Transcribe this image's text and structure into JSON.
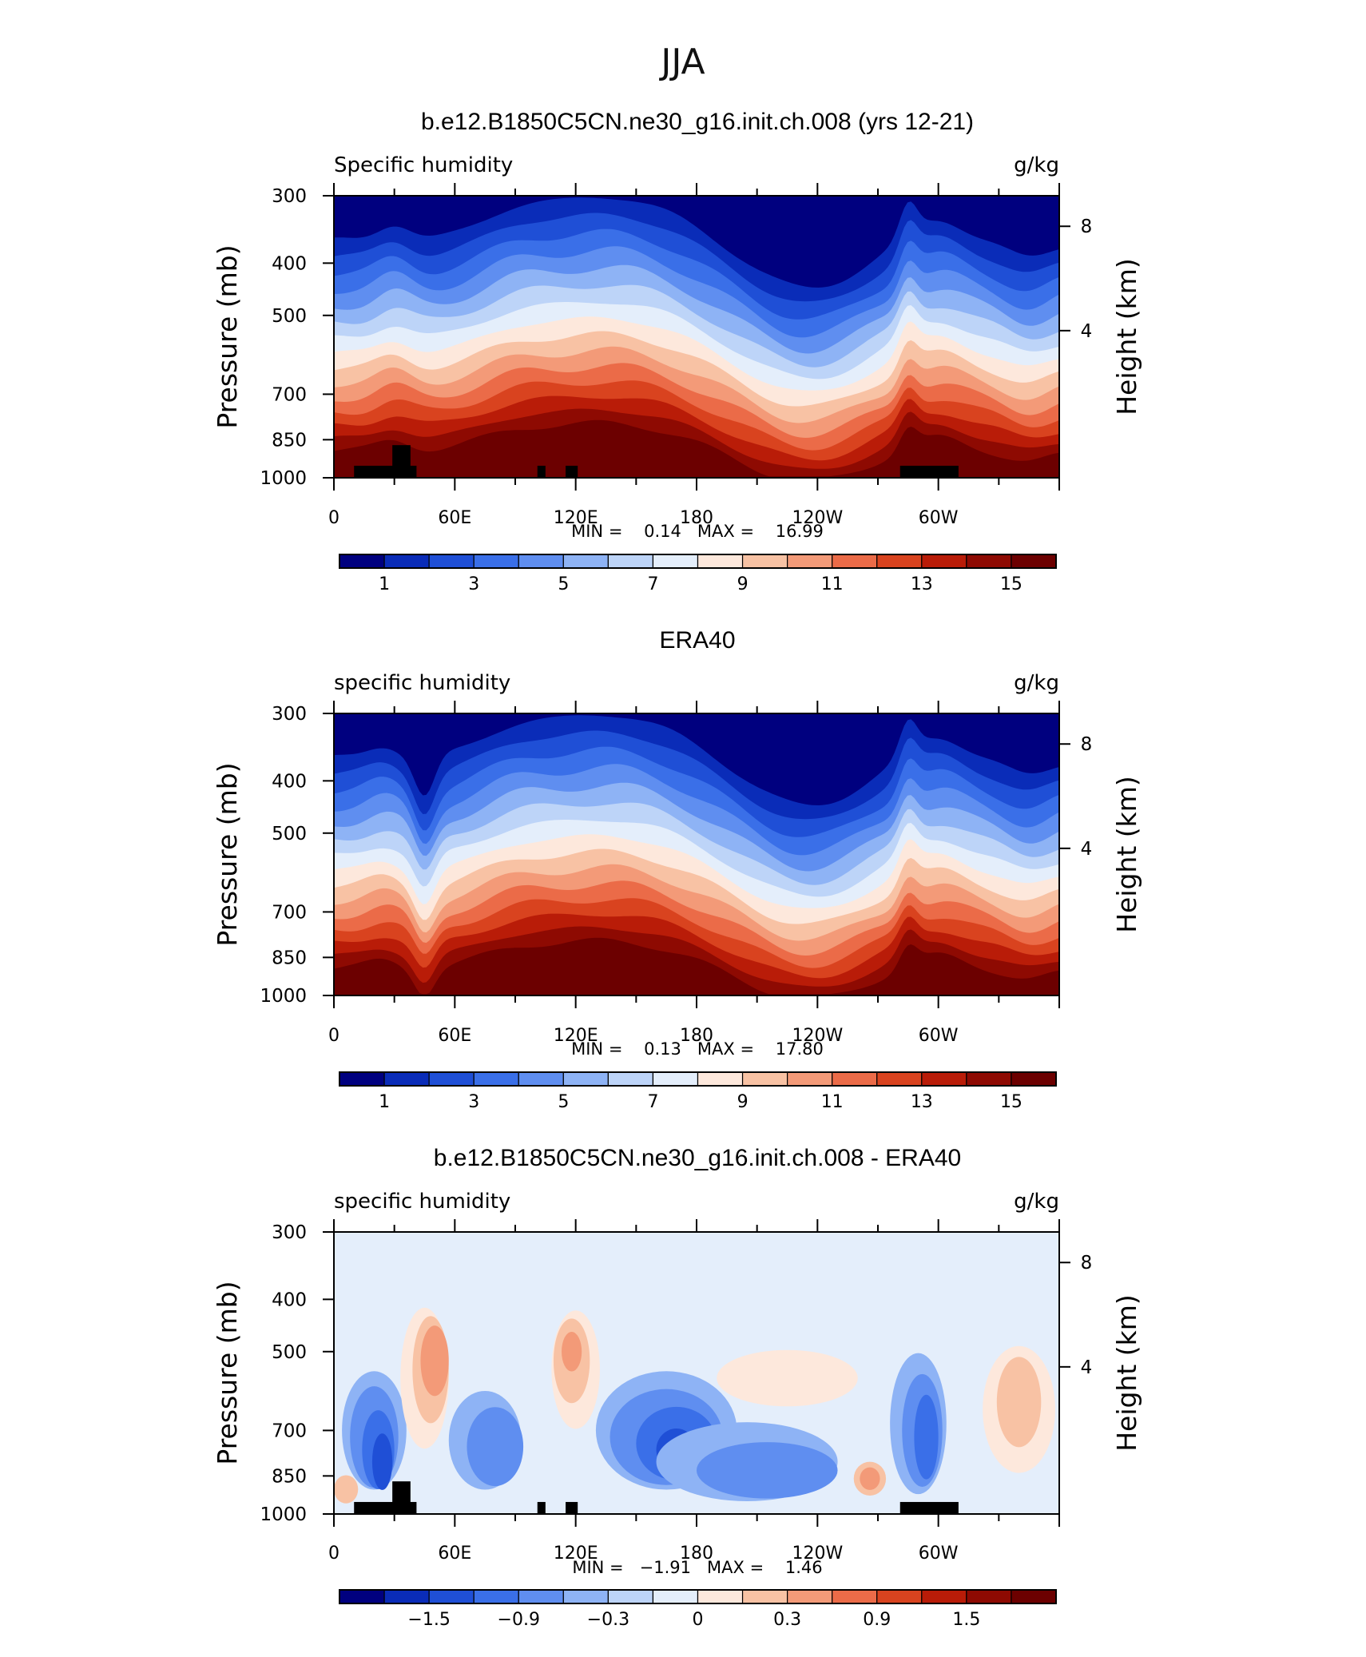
{
  "figure": {
    "season_title": "JJA"
  },
  "chart_data": [
    {
      "type": "heatmap",
      "title": "b.e12.B1850C5CN.ne30_g16.init.ch.008 (yrs 12-21)",
      "left_label": "Specific humidity",
      "right_label": "g/kg",
      "xlabel": "",
      "ylabel": "Pressure (mb)",
      "ylabel_right": "Height (km)",
      "x_ticks": [
        "0",
        "60E",
        "120E",
        "180",
        "120W",
        "60W"
      ],
      "y_ticks": [
        "300",
        "400",
        "500",
        "700",
        "850",
        "1000"
      ],
      "y_right_ticks": [
        "8",
        "4"
      ],
      "ylim": [
        1000,
        300
      ],
      "stats": "MIN =    0.14   MAX =    16.99",
      "colorbar_labels": [
        "1",
        "3",
        "5",
        "7",
        "9",
        "11",
        "13",
        "15"
      ],
      "colorbar_colors": [
        "#00007f",
        "#0a2cb8",
        "#1f4fd6",
        "#3a6fe8",
        "#5f8ef0",
        "#8eb3f5",
        "#bdd4f8",
        "#e4eefb",
        "#fde8dc",
        "#f8c2a4",
        "#f39a78",
        "#eb6b48",
        "#d9431f",
        "#b91c08",
        "#8e0a02",
        "#6c0000"
      ],
      "panel_kind": "field",
      "has_mask": true
    },
    {
      "type": "heatmap",
      "title": "ERA40",
      "left_label": "specific humidity",
      "right_label": "g/kg",
      "xlabel": "",
      "ylabel": "Pressure (mb)",
      "ylabel_right": "Height (km)",
      "x_ticks": [
        "0",
        "60E",
        "120E",
        "180",
        "120W",
        "60W"
      ],
      "y_ticks": [
        "300",
        "400",
        "500",
        "700",
        "850",
        "1000"
      ],
      "y_right_ticks": [
        "8",
        "4"
      ],
      "ylim": [
        1000,
        300
      ],
      "stats": "MIN =    0.13   MAX =    17.80",
      "colorbar_labels": [
        "1",
        "3",
        "5",
        "7",
        "9",
        "11",
        "13",
        "15"
      ],
      "colorbar_colors": [
        "#00007f",
        "#0a2cb8",
        "#1f4fd6",
        "#3a6fe8",
        "#5f8ef0",
        "#8eb3f5",
        "#bdd4f8",
        "#e4eefb",
        "#fde8dc",
        "#f8c2a4",
        "#f39a78",
        "#eb6b48",
        "#d9431f",
        "#b91c08",
        "#8e0a02",
        "#6c0000"
      ],
      "panel_kind": "field",
      "has_mask": false
    },
    {
      "type": "heatmap",
      "title": "b.e12.B1850C5CN.ne30_g16.init.ch.008 - ERA40",
      "left_label": "specific humidity",
      "right_label": "g/kg",
      "xlabel": "",
      "ylabel": "Pressure (mb)",
      "ylabel_right": "Height (km)",
      "x_ticks": [
        "0",
        "60E",
        "120E",
        "180",
        "120W",
        "60W"
      ],
      "y_ticks": [
        "300",
        "400",
        "500",
        "700",
        "850",
        "1000"
      ],
      "y_right_ticks": [
        "8",
        "4"
      ],
      "ylim": [
        1000,
        300
      ],
      "stats": "MIN =   −1.91   MAX =    1.46",
      "colorbar_labels": [
        "−1.5",
        "−0.9",
        "−0.3",
        "0",
        "0.3",
        "0.9",
        "1.5"
      ],
      "colorbar_colors": [
        "#00007f",
        "#0a2cb8",
        "#1f4fd6",
        "#3a6fe8",
        "#5f8ef0",
        "#8eb3f5",
        "#bdd4f8",
        "#e4eefb",
        "#fde8dc",
        "#f8c2a4",
        "#f39a78",
        "#eb6b48",
        "#d9431f",
        "#b91c08",
        "#8e0a02",
        "#6c0000"
      ],
      "panel_kind": "difference",
      "has_mask": true
    }
  ]
}
